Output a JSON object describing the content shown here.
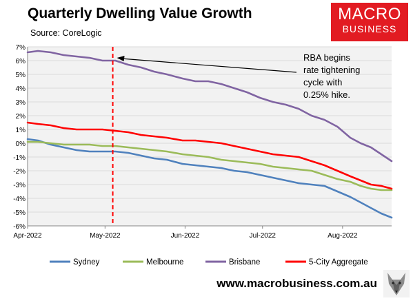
{
  "header": {
    "title": "Quarterly Dwelling Value Growth",
    "subtitle": "Source: CoreLogic"
  },
  "logo": {
    "line1": "MACRO",
    "line2": "BUSINESS"
  },
  "footer": {
    "url": "www.macrobusiness.com.au"
  },
  "colors": {
    "sydney": "#4f81bd",
    "melbourne": "#9bbb59",
    "brisbane": "#8064a2",
    "aggregate": "#ff0000",
    "marker": "#ff0000",
    "logo_bg": "#e21b22"
  },
  "chart_data": {
    "type": "line",
    "title": "Quarterly Dwelling Value Growth",
    "subtitle": "Source: CoreLogic",
    "x_type": "date",
    "xlim": [
      "2022-04-01",
      "2022-08-20"
    ],
    "ylim": [
      -6,
      7
    ],
    "y_tick_step": 1,
    "y_tick_format": "percent",
    "x_ticks": [
      {
        "date": "2022-04-01",
        "label": "Apr-2022"
      },
      {
        "date": "2022-05-01",
        "label": "May-2022"
      },
      {
        "date": "2022-06-01",
        "label": "Jun-2022"
      },
      {
        "date": "2022-07-01",
        "label": "Jul-2022"
      },
      {
        "date": "2022-08-01",
        "label": "Aug-2022"
      }
    ],
    "grid": "horizontal",
    "legend_position": "bottom",
    "series": [
      {
        "name": "Sydney",
        "color": "#4f81bd",
        "points": [
          [
            "2022-04-01",
            0.3
          ],
          [
            "2022-04-05",
            0.2
          ],
          [
            "2022-04-10",
            -0.1
          ],
          [
            "2022-04-15",
            -0.3
          ],
          [
            "2022-04-20",
            -0.5
          ],
          [
            "2022-04-25",
            -0.6
          ],
          [
            "2022-04-30",
            -0.6
          ],
          [
            "2022-05-05",
            -0.6
          ],
          [
            "2022-05-10",
            -0.7
          ],
          [
            "2022-05-15",
            -0.9
          ],
          [
            "2022-05-20",
            -1.1
          ],
          [
            "2022-05-25",
            -1.2
          ],
          [
            "2022-05-31",
            -1.5
          ],
          [
            "2022-06-05",
            -1.6
          ],
          [
            "2022-06-10",
            -1.7
          ],
          [
            "2022-06-15",
            -1.8
          ],
          [
            "2022-06-20",
            -2.0
          ],
          [
            "2022-06-25",
            -2.1
          ],
          [
            "2022-06-30",
            -2.3
          ],
          [
            "2022-07-05",
            -2.5
          ],
          [
            "2022-07-10",
            -2.7
          ],
          [
            "2022-07-15",
            -2.9
          ],
          [
            "2022-07-20",
            -3.0
          ],
          [
            "2022-07-25",
            -3.1
          ],
          [
            "2022-07-30",
            -3.5
          ],
          [
            "2022-08-04",
            -3.9
          ],
          [
            "2022-08-08",
            -4.3
          ],
          [
            "2022-08-12",
            -4.7
          ],
          [
            "2022-08-16",
            -5.1
          ],
          [
            "2022-08-20",
            -5.4
          ]
        ]
      },
      {
        "name": "Melbourne",
        "color": "#9bbb59",
        "points": [
          [
            "2022-04-01",
            0.1
          ],
          [
            "2022-04-05",
            0.1
          ],
          [
            "2022-04-10",
            0.0
          ],
          [
            "2022-04-15",
            -0.1
          ],
          [
            "2022-04-20",
            -0.1
          ],
          [
            "2022-04-25",
            -0.1
          ],
          [
            "2022-04-30",
            -0.2
          ],
          [
            "2022-05-05",
            -0.2
          ],
          [
            "2022-05-10",
            -0.3
          ],
          [
            "2022-05-15",
            -0.4
          ],
          [
            "2022-05-20",
            -0.5
          ],
          [
            "2022-05-25",
            -0.6
          ],
          [
            "2022-05-31",
            -0.8
          ],
          [
            "2022-06-05",
            -0.9
          ],
          [
            "2022-06-10",
            -1.0
          ],
          [
            "2022-06-15",
            -1.2
          ],
          [
            "2022-06-20",
            -1.3
          ],
          [
            "2022-06-25",
            -1.4
          ],
          [
            "2022-06-30",
            -1.5
          ],
          [
            "2022-07-05",
            -1.7
          ],
          [
            "2022-07-10",
            -1.8
          ],
          [
            "2022-07-15",
            -1.9
          ],
          [
            "2022-07-20",
            -2.0
          ],
          [
            "2022-07-25",
            -2.3
          ],
          [
            "2022-07-30",
            -2.6
          ],
          [
            "2022-08-04",
            -2.8
          ],
          [
            "2022-08-08",
            -3.1
          ],
          [
            "2022-08-12",
            -3.3
          ],
          [
            "2022-08-16",
            -3.4
          ],
          [
            "2022-08-20",
            -3.4
          ]
        ]
      },
      {
        "name": "Brisbane",
        "color": "#8064a2",
        "points": [
          [
            "2022-04-01",
            6.6
          ],
          [
            "2022-04-05",
            6.7
          ],
          [
            "2022-04-10",
            6.6
          ],
          [
            "2022-04-15",
            6.4
          ],
          [
            "2022-04-20",
            6.3
          ],
          [
            "2022-04-25",
            6.2
          ],
          [
            "2022-04-30",
            6.0
          ],
          [
            "2022-05-05",
            6.0
          ],
          [
            "2022-05-10",
            5.7
          ],
          [
            "2022-05-15",
            5.5
          ],
          [
            "2022-05-20",
            5.2
          ],
          [
            "2022-05-25",
            5.0
          ],
          [
            "2022-05-31",
            4.7
          ],
          [
            "2022-06-05",
            4.5
          ],
          [
            "2022-06-10",
            4.5
          ],
          [
            "2022-06-15",
            4.3
          ],
          [
            "2022-06-20",
            4.0
          ],
          [
            "2022-06-25",
            3.7
          ],
          [
            "2022-06-30",
            3.3
          ],
          [
            "2022-07-05",
            3.0
          ],
          [
            "2022-07-10",
            2.8
          ],
          [
            "2022-07-15",
            2.5
          ],
          [
            "2022-07-20",
            2.0
          ],
          [
            "2022-07-25",
            1.7
          ],
          [
            "2022-07-30",
            1.2
          ],
          [
            "2022-08-04",
            0.4
          ],
          [
            "2022-08-08",
            0.0
          ],
          [
            "2022-08-12",
            -0.3
          ],
          [
            "2022-08-16",
            -0.8
          ],
          [
            "2022-08-20",
            -1.3
          ]
        ]
      },
      {
        "name": "5-City Aggregate",
        "color": "#ff0000",
        "points": [
          [
            "2022-04-01",
            1.5
          ],
          [
            "2022-04-05",
            1.4
          ],
          [
            "2022-04-10",
            1.3
          ],
          [
            "2022-04-15",
            1.1
          ],
          [
            "2022-04-20",
            1.0
          ],
          [
            "2022-04-25",
            1.0
          ],
          [
            "2022-04-30",
            1.0
          ],
          [
            "2022-05-05",
            0.9
          ],
          [
            "2022-05-10",
            0.8
          ],
          [
            "2022-05-15",
            0.6
          ],
          [
            "2022-05-20",
            0.5
          ],
          [
            "2022-05-25",
            0.4
          ],
          [
            "2022-05-31",
            0.2
          ],
          [
            "2022-06-05",
            0.2
          ],
          [
            "2022-06-10",
            0.1
          ],
          [
            "2022-06-15",
            0.0
          ],
          [
            "2022-06-20",
            -0.2
          ],
          [
            "2022-06-25",
            -0.4
          ],
          [
            "2022-06-30",
            -0.6
          ],
          [
            "2022-07-05",
            -0.8
          ],
          [
            "2022-07-10",
            -0.9
          ],
          [
            "2022-07-15",
            -1.0
          ],
          [
            "2022-07-20",
            -1.3
          ],
          [
            "2022-07-25",
            -1.6
          ],
          [
            "2022-07-30",
            -2.0
          ],
          [
            "2022-08-04",
            -2.4
          ],
          [
            "2022-08-08",
            -2.7
          ],
          [
            "2022-08-12",
            -3.0
          ],
          [
            "2022-08-16",
            -3.1
          ],
          [
            "2022-08-20",
            -3.3
          ]
        ]
      }
    ],
    "markers": [
      {
        "type": "vertical-dashed-line",
        "date": "2022-05-04",
        "color": "#ff0000"
      }
    ],
    "annotations": [
      {
        "lines": [
          "RBA begins",
          "rate tightening",
          "cycle with",
          "0.25% hike."
        ],
        "arrow_to_date": "2022-05-04",
        "arrow_to_value": 6.6
      }
    ]
  }
}
